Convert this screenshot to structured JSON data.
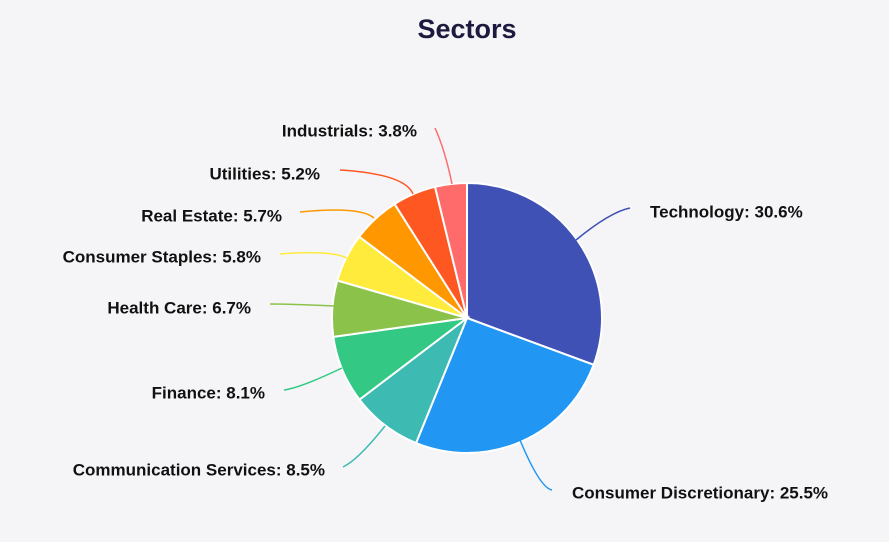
{
  "chart_data": {
    "type": "pie",
    "title": "Sectors",
    "start_angle_deg": 0,
    "direction": "clockwise",
    "labels_show": "name: percent",
    "slices": [
      {
        "name": "Technology",
        "value": 30.6,
        "label": "Technology: 30.6%",
        "color": "#3f51b5"
      },
      {
        "name": "Consumer Discretionary",
        "value": 25.5,
        "label": "Consumer Discretionary: 25.5%",
        "color": "#2196f3"
      },
      {
        "name": "Communication Services",
        "value": 8.5,
        "label": "Communication Services: 8.5%",
        "color": "#3dbab1"
      },
      {
        "name": "Finance",
        "value": 8.1,
        "label": "Finance: 8.1%",
        "color": "#33c985"
      },
      {
        "name": "Health Care",
        "value": 6.7,
        "label": "Health Care: 6.7%",
        "color": "#8bc34a"
      },
      {
        "name": "Consumer Staples",
        "value": 5.8,
        "label": "Consumer Staples: 5.8%",
        "color": "#ffeb3b"
      },
      {
        "name": "Real Estate",
        "value": 5.7,
        "label": "Real Estate: 5.7%",
        "color": "#ff9800"
      },
      {
        "name": "Utilities",
        "value": 5.2,
        "label": "Utilities: 5.2%",
        "color": "#ff5722"
      },
      {
        "name": "Industrials",
        "value": 3.8,
        "label": "Industrials: 3.8%",
        "color": "#ff6b6b"
      }
    ]
  }
}
